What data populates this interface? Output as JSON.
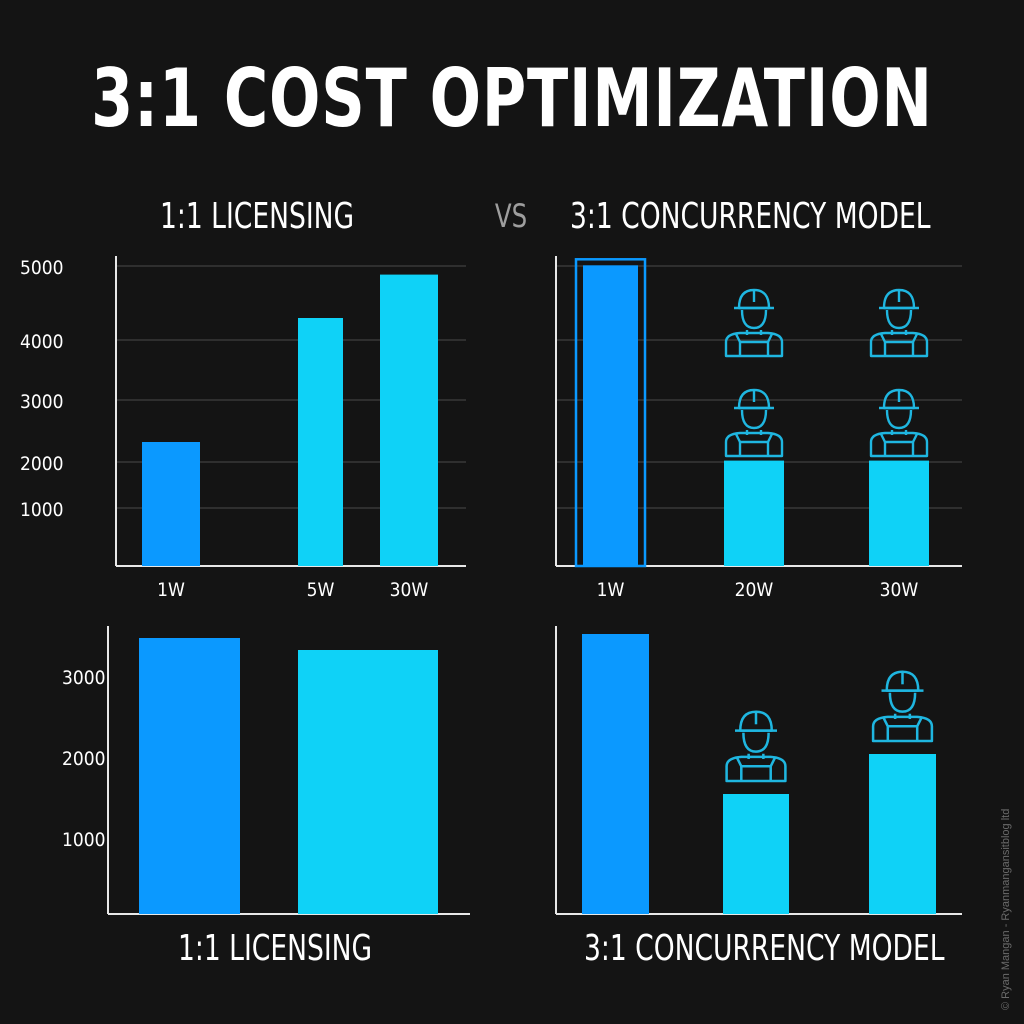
{
  "header": {
    "title": "3:1 COST OPTIMIZATION",
    "left_label": "1:1 LICENSING",
    "vs_label": "VS",
    "right_label": "3:1 CONCURRENCY MODEL"
  },
  "footer": {
    "left_label": "1:1 LICENSING",
    "right_label": "3:1 CONCURRENCY MODEL"
  },
  "watermark": "© Ryan Mangan - Ryanmangansitblog ltd",
  "colors": {
    "background": "#141414",
    "bar_dark": "#0b99ff",
    "bar_light": "#0fd2f7",
    "worker_icon": "#1fb6e0",
    "gridline": "#4a4a4a",
    "axis": "#e8e8e8"
  },
  "icons": {
    "worker": "construction-worker-icon"
  },
  "chart_data": [
    {
      "type": "bar",
      "position": "top-left",
      "categories": [
        "1W",
        "5W",
        "30W"
      ],
      "values": [
        2000,
        4000,
        4700
      ],
      "bar_colors": [
        "#0b99ff",
        "#0fd2f7",
        "#0fd2f7"
      ],
      "yticks": [
        1000,
        2000,
        3000,
        4000,
        5000
      ],
      "ylim": [
        0,
        5000
      ],
      "grid": true
    },
    {
      "type": "bar",
      "position": "top-right",
      "categories": [
        "1W",
        "20W",
        "30W"
      ],
      "values": [
        4850,
        1700,
        1700
      ],
      "bar_colors": [
        "#0b99ff",
        "#0fd2f7",
        "#0fd2f7"
      ],
      "highlight_outline": [
        true,
        false,
        false
      ],
      "worker_icons": [
        0,
        2,
        2
      ],
      "ylim": [
        0,
        5000
      ],
      "grid": true
    },
    {
      "type": "bar",
      "position": "bottom-left",
      "categories": [
        "",
        ""
      ],
      "values": [
        3450,
        3300
      ],
      "bar_colors": [
        "#0b99ff",
        "#0fd2f7"
      ],
      "yticks": [
        1000,
        2000,
        3000
      ],
      "ylim": [
        0,
        3600
      ],
      "grid": false
    },
    {
      "type": "bar",
      "position": "bottom-right",
      "categories": [
        "",
        "",
        ""
      ],
      "values": [
        3500,
        1500,
        2000
      ],
      "bar_colors": [
        "#0b99ff",
        "#0fd2f7",
        "#0fd2f7"
      ],
      "worker_icons": [
        0,
        1,
        1
      ],
      "ylim": [
        0,
        3600
      ],
      "grid": false
    }
  ]
}
